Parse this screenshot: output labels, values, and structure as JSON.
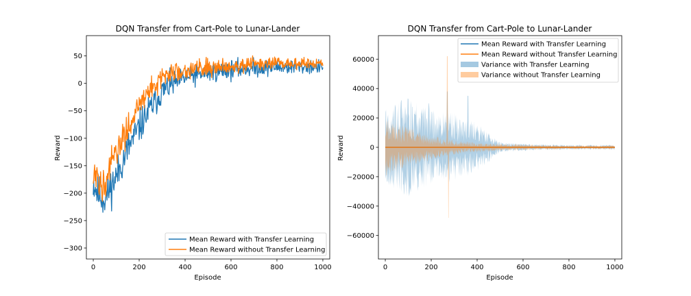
{
  "figure": {
    "background": "#ffffff"
  },
  "chart_data": [
    {
      "type": "line",
      "title": "DQN Transfer from Cart-Pole to Lunar-Lander",
      "xlabel": "Episode",
      "ylabel": "Reward",
      "xlim": [
        -30,
        1030
      ],
      "ylim": [
        -320,
        87
      ],
      "xticks": [
        0,
        200,
        400,
        600,
        800,
        1000
      ],
      "yticks": [
        -300,
        -250,
        -200,
        -150,
        -100,
        -50,
        0,
        50
      ],
      "grid": false,
      "legend_position": "lower right",
      "series": [
        {
          "name": "Mean Reward with Transfer Learning",
          "color": "#1f77b4",
          "trend_x": [
            0,
            20,
            50,
            100,
            150,
            200,
            250,
            300,
            350,
            400,
            500,
            600,
            700,
            800,
            900,
            1000
          ],
          "trend_y": [
            -180,
            -200,
            -210,
            -170,
            -120,
            -80,
            -45,
            -15,
            0,
            10,
            20,
            25,
            28,
            30,
            30,
            30
          ],
          "spread_x": [
            0,
            200,
            400,
            1000
          ],
          "spread_y": [
            55,
            45,
            30,
            18
          ]
        },
        {
          "name": "Mean Reward without Transfer Learning",
          "color": "#ff7f0e",
          "trend_x": [
            0,
            20,
            50,
            100,
            150,
            200,
            250,
            300,
            350,
            400,
            500,
            600,
            700,
            800,
            900,
            1000
          ],
          "trend_y": [
            -170,
            -185,
            -175,
            -130,
            -80,
            -40,
            -10,
            10,
            20,
            25,
            30,
            32,
            35,
            36,
            36,
            36
          ],
          "spread_x": [
            0,
            200,
            400,
            1000
          ],
          "spread_y": [
            50,
            35,
            25,
            15
          ]
        }
      ]
    },
    {
      "type": "area",
      "title": "DQN Transfer from Cart-Pole to Lunar-Lander",
      "xlabel": "Episode",
      "ylabel": "Reward",
      "xlim": [
        -30,
        1030
      ],
      "ylim": [
        -76000,
        76000
      ],
      "xticks": [
        0,
        200,
        400,
        600,
        800,
        1000
      ],
      "yticks": [
        -60000,
        -40000,
        -20000,
        0,
        20000,
        40000,
        60000
      ],
      "grid": false,
      "legend_position": "upper right",
      "series": [
        {
          "name": "Mean Reward with Transfer Learning",
          "kind": "line",
          "color": "#1f77b4"
        },
        {
          "name": "Mean Reward without Transfer Learning",
          "kind": "line",
          "color": "#ff7f0e"
        },
        {
          "name": "Variance with Transfer Learning",
          "kind": "band",
          "color": "#1f77b4",
          "envelope_x": [
            0,
            100,
            200,
            300,
            400,
            500,
            600,
            700,
            800,
            1000
          ],
          "envelope_y": [
            15000,
            20000,
            15000,
            14000,
            10000,
            2000,
            1500,
            1200,
            1000,
            1000
          ],
          "spikes": [
            {
              "x": 70,
              "y": 32000
            },
            {
              "x": 100,
              "y": 33000
            },
            {
              "x": 190,
              "y": 30000
            },
            {
              "x": 270,
              "y": 38000
            },
            {
              "x": 360,
              "y": 35000
            }
          ]
        },
        {
          "name": "Variance without Transfer Learning",
          "kind": "band",
          "color": "#ff7f0e",
          "envelope_x": [
            0,
            100,
            200,
            300,
            400,
            500,
            600,
            700,
            800,
            1000
          ],
          "envelope_y": [
            12000,
            8000,
            5000,
            3000,
            2000,
            1500,
            1200,
            1000,
            800,
            800
          ],
          "spikes": [
            {
              "x": 270,
              "y": 62000
            },
            {
              "x": 275,
              "y": -48000
            }
          ]
        }
      ]
    }
  ]
}
